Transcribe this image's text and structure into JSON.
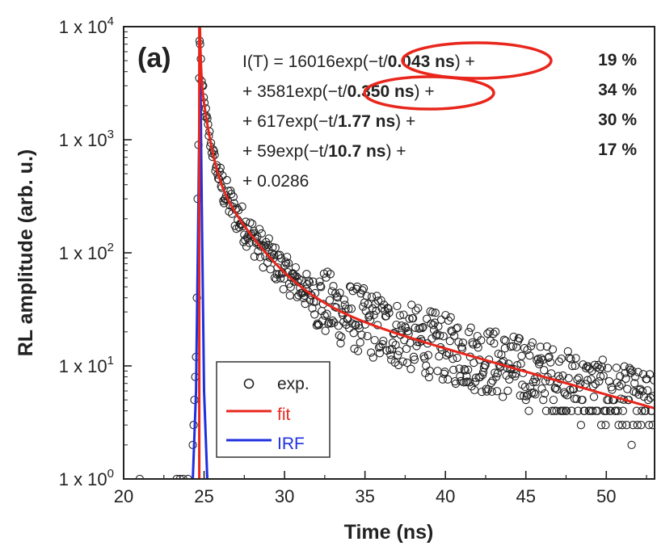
{
  "chart_data": {
    "type": "scatter",
    "panel_label": "(a)",
    "xlabel": "Time (ns)",
    "ylabel": "RL amplitude (arb. u.)",
    "xlim": [
      20,
      53
    ],
    "ylim": [
      1,
      10000
    ],
    "yscale": "log",
    "x_ticks": [
      20,
      25,
      30,
      35,
      40,
      45,
      50
    ],
    "y_ticks": [
      {
        "value": 1,
        "exp": "0"
      },
      {
        "value": 10,
        "exp": "1"
      },
      {
        "value": 100,
        "exp": "2"
      },
      {
        "value": 1000,
        "exp": "3"
      },
      {
        "value": 10000,
        "exp": "4"
      }
    ],
    "y_tick_base": "1 x 10",
    "grid": false,
    "legend_position": "bottom-left",
    "legend": [
      {
        "label": "exp.",
        "color": "#222222",
        "marker": "open-circle"
      },
      {
        "label": "fit",
        "color": "#e8261c",
        "marker": "line"
      },
      {
        "label": "IRF",
        "color": "#1f2fe0",
        "marker": "line"
      }
    ],
    "fit_equation": [
      {
        "pre": "I(T) = 16016exp(",
        "circ": "−t/",
        "bold": "0.043 ns",
        "post": ") +",
        "percent": "19 %",
        "circled": true
      },
      {
        "pre": "+ 3581exp(",
        "circ": "−t/",
        "bold": "0.350 ns",
        "post": ") +",
        "percent": "34 %",
        "circled": true
      },
      {
        "pre": "+ 617exp(",
        "circ": "−t/",
        "bold": "1.77 ns",
        "post": ") +",
        "percent": "30 %",
        "circled": false
      },
      {
        "pre": "+ 59exp(",
        "circ": "−t/",
        "bold": "10.7 ns",
        "post": ") +",
        "percent": "17 %",
        "circled": false
      },
      {
        "pre": "+ 0.0286",
        "circ": "",
        "bold": "",
        "post": "",
        "percent": "",
        "circled": false
      }
    ],
    "fit_params": {
      "t0": 24.7,
      "amplitudes": [
        16016,
        3581,
        617,
        59
      ],
      "taus_ns": [
        0.043,
        0.35,
        1.77,
        10.7
      ],
      "offset": 0.0286
    },
    "irf": {
      "x": [
        24.3,
        24.5,
        24.65,
        24.75,
        24.85,
        25.0,
        25.2
      ],
      "y": [
        1,
        6,
        300,
        7000,
        300,
        6,
        1
      ]
    },
    "exp_points_sample": {
      "x": [
        21,
        23.5,
        24.2,
        24.4,
        24.6,
        24.7,
        25.0,
        25.5,
        26,
        27,
        28,
        30,
        32,
        35,
        38,
        40,
        42,
        45,
        48,
        50,
        52
      ],
      "y": [
        1,
        1,
        2,
        10,
        800,
        7500,
        3000,
        900,
        500,
        250,
        150,
        80,
        45,
        25,
        16,
        13,
        11,
        8,
        6,
        5,
        4
      ]
    },
    "colors": {
      "data": "#222222",
      "fit": "#e8261c",
      "irf": "#1f2fe0",
      "highlight": "#e8261c"
    }
  }
}
